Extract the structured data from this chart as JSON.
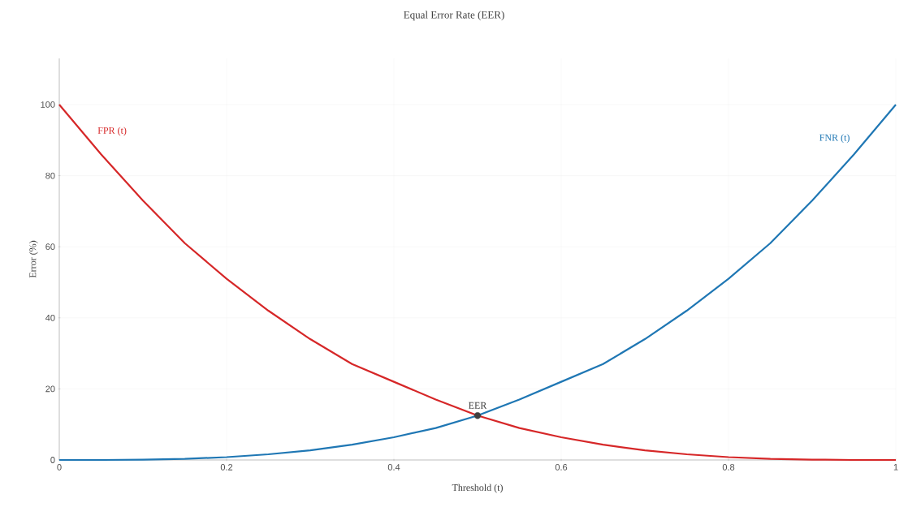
{
  "chart_data": {
    "type": "line",
    "title": "Equal Error Rate (EER)",
    "xlabel": "Threshold (t)",
    "ylabel": "Error (%)",
    "x": [
      0,
      0.05,
      0.1,
      0.15,
      0.2,
      0.25,
      0.3,
      0.35,
      0.4,
      0.45,
      0.5,
      0.55,
      0.6,
      0.65,
      0.7,
      0.75,
      0.8,
      0.85,
      0.9,
      0.95,
      1
    ],
    "series": [
      {
        "name": "FPR (t)",
        "color": "#d62728",
        "values": [
          100,
          86,
          73,
          61,
          51,
          42,
          34,
          27,
          22,
          17,
          12.5,
          9,
          6.4,
          4.3,
          2.7,
          1.6,
          0.8,
          0.3,
          0.1,
          0,
          0
        ]
      },
      {
        "name": "FNR (t)",
        "color": "#1f77b4",
        "values": [
          0,
          0,
          0.1,
          0.3,
          0.8,
          1.6,
          2.7,
          4.3,
          6.4,
          9,
          12.5,
          17,
          22,
          27,
          34,
          42,
          51,
          61,
          73,
          86,
          100
        ]
      },
      {
        "name": "EER",
        "type": "scatter",
        "color": "#3f3f3f",
        "marker": "circle",
        "x": [
          0.5
        ],
        "values": [
          12.5
        ]
      }
    ],
    "xlim": [
      0,
      1
    ],
    "ylim": [
      0,
      113
    ],
    "xticks": [
      0,
      0.2,
      0.4,
      0.6,
      0.8,
      1
    ],
    "yticks": [
      0,
      20,
      40,
      60,
      80,
      100
    ],
    "grid": true,
    "marker": "none",
    "line_style": "solid",
    "legend": false
  }
}
